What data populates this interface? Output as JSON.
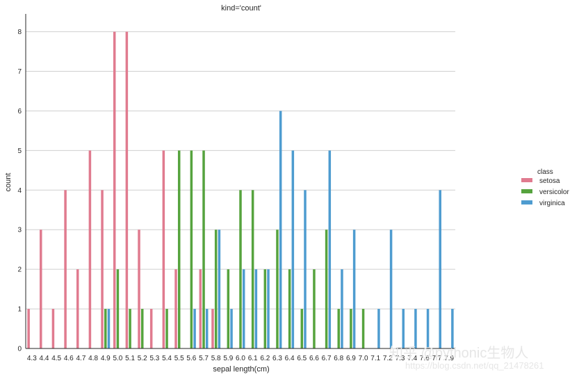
{
  "chart_data": {
    "type": "bar",
    "title": "kind='count'",
    "xlabel": "sepal length(cm)",
    "ylabel": "count",
    "ylim": [
      0,
      8.45
    ],
    "yticks": [
      0,
      1,
      2,
      3,
      4,
      5,
      6,
      7,
      8
    ],
    "grid": "horizontal",
    "legend": {
      "title": "class",
      "position": "right"
    },
    "categories": [
      "4.3",
      "4.4",
      "4.5",
      "4.6",
      "4.7",
      "4.8",
      "4.9",
      "5.0",
      "5.1",
      "5.2",
      "5.3",
      "5.4",
      "5.5",
      "5.6",
      "5.7",
      "5.8",
      "5.9",
      "6.0",
      "6.1",
      "6.2",
      "6.3",
      "6.4",
      "6.5",
      "6.6",
      "6.7",
      "6.8",
      "6.9",
      "7.0",
      "7.1",
      "7.2",
      "7.3",
      "7.4",
      "7.6",
      "7.7",
      "7.9"
    ],
    "series": [
      {
        "name": "setosa",
        "color": "#e07b8f",
        "values": [
          1,
          3,
          1,
          4,
          2,
          5,
          4,
          8,
          8,
          3,
          1,
          5,
          2,
          0,
          2,
          1,
          0,
          0,
          0,
          0,
          0,
          0,
          0,
          0,
          0,
          0,
          0,
          0,
          0,
          0,
          0,
          0,
          0,
          0,
          0
        ]
      },
      {
        "name": "versicolor",
        "color": "#56a33e",
        "values": [
          0,
          0,
          0,
          0,
          0,
          0,
          1,
          2,
          1,
          1,
          0,
          1,
          5,
          5,
          5,
          3,
          2,
          4,
          4,
          2,
          3,
          2,
          1,
          2,
          3,
          1,
          1,
          1,
          0,
          0,
          0,
          0,
          0,
          0,
          0
        ]
      },
      {
        "name": "virginica",
        "color": "#4e9cd0",
        "values": [
          0,
          0,
          0,
          0,
          0,
          0,
          1,
          0,
          0,
          0,
          0,
          0,
          0,
          1,
          1,
          3,
          1,
          2,
          2,
          2,
          6,
          5,
          4,
          0,
          5,
          2,
          3,
          0,
          1,
          3,
          1,
          1,
          1,
          4,
          1
        ]
      }
    ]
  },
  "watermark": {
    "text": "知乎 @pythonic生物人",
    "url": "https://blog.csdn.net/qq_21478261"
  }
}
